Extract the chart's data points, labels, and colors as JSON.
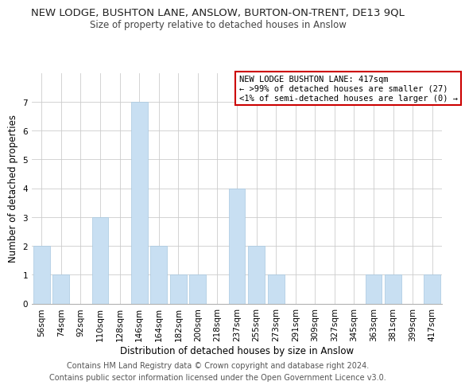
{
  "title": "NEW LODGE, BUSHTON LANE, ANSLOW, BURTON-ON-TRENT, DE13 9QL",
  "subtitle": "Size of property relative to detached houses in Anslow",
  "xlabel": "Distribution of detached houses by size in Anslow",
  "ylabel": "Number of detached properties",
  "categories": [
    "56sqm",
    "74sqm",
    "92sqm",
    "110sqm",
    "128sqm",
    "146sqm",
    "164sqm",
    "182sqm",
    "200sqm",
    "218sqm",
    "237sqm",
    "255sqm",
    "273sqm",
    "291sqm",
    "309sqm",
    "327sqm",
    "345sqm",
    "363sqm",
    "381sqm",
    "399sqm",
    "417sqm"
  ],
  "values": [
    2,
    1,
    0,
    3,
    0,
    7,
    2,
    1,
    1,
    0,
    4,
    2,
    1,
    0,
    0,
    0,
    0,
    1,
    1,
    0,
    1
  ],
  "bar_color": "#c8dff2",
  "bar_edge_color": "#a8c8e0",
  "ylim": [
    0,
    8
  ],
  "yticks": [
    0,
    1,
    2,
    3,
    4,
    5,
    6,
    7
  ],
  "annotation_title": "NEW LODGE BUSHTON LANE: 417sqm",
  "annotation_line2": "← >99% of detached houses are smaller (27)",
  "annotation_line3": "<1% of semi-detached houses are larger (0) →",
  "annotation_box_color": "#ffffff",
  "annotation_border_color": "#cc0000",
  "footer_line1": "Contains HM Land Registry data © Crown copyright and database right 2024.",
  "footer_line2": "Contains public sector information licensed under the Open Government Licence v3.0.",
  "bg_color": "#ffffff",
  "grid_color": "#cccccc",
  "title_fontsize": 9.5,
  "subtitle_fontsize": 8.5,
  "ylabel_fontsize": 8.5,
  "xlabel_fontsize": 8.5,
  "tick_fontsize": 7.5,
  "annotation_fontsize": 7.5,
  "footer_fontsize": 7.0
}
